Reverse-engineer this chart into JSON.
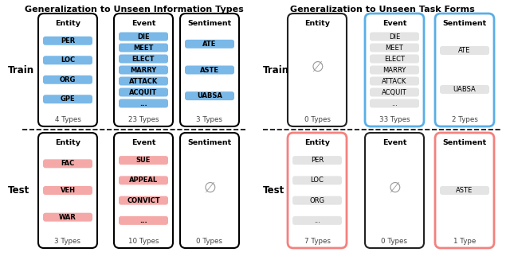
{
  "title_left": "Generalization to Unseen Information Types",
  "title_right": "Generalization to Unseen Task Forms",
  "left": {
    "train": {
      "Entity": {
        "items": [
          "PER",
          "LOC",
          "ORG",
          "GPE"
        ],
        "count": "4 Types",
        "item_color": "#7ab8e8",
        "box_border": "black",
        "empty": false
      },
      "Event": {
        "items": [
          "DIE",
          "MEET",
          "ELECT",
          "MARRY",
          "ATTACK",
          "ACQUIT",
          "..."
        ],
        "count": "23 Types",
        "item_color": "#7ab8e8",
        "box_border": "black",
        "empty": false
      },
      "Sentiment": {
        "items": [
          "ATE",
          "ASTE",
          "UABSA"
        ],
        "count": "3 Types",
        "item_color": "#7ab8e8",
        "box_border": "black",
        "empty": false
      }
    },
    "test": {
      "Entity": {
        "items": [
          "FAC",
          "VEH",
          "WAR"
        ],
        "count": "3 Types",
        "item_color": "#f4a9a8",
        "box_border": "black",
        "empty": false
      },
      "Event": {
        "items": [
          "SUE",
          "APPEAL",
          "CONVICT",
          "..."
        ],
        "count": "10 Types",
        "item_color": "#f4a9a8",
        "box_border": "black",
        "empty": false
      },
      "Sentiment": {
        "items": [],
        "count": "0 Types",
        "item_color": null,
        "box_border": "black",
        "empty": true
      }
    }
  },
  "right": {
    "train": {
      "Entity": {
        "items": [],
        "count": "0 Types",
        "item_color": null,
        "box_border": "#222222",
        "empty": true
      },
      "Event": {
        "items": [
          "DIE",
          "MEET",
          "ELECT",
          "MARRY",
          "ATTACK",
          "ACQUIT",
          "..."
        ],
        "count": "33 Types",
        "item_color": "#e4e4e4",
        "box_border": "#5aaee8",
        "empty": false
      },
      "Sentiment": {
        "items": [
          "ATE",
          "UABSA"
        ],
        "count": "2 Types",
        "item_color": "#e4e4e4",
        "box_border": "#5aaee8",
        "empty": false
      }
    },
    "test": {
      "Entity": {
        "items": [
          "PER",
          "LOC",
          "ORG",
          "..."
        ],
        "count": "7 Types",
        "item_color": "#e4e4e4",
        "box_border": "#f4817e",
        "empty": false
      },
      "Event": {
        "items": [],
        "count": "0 Types",
        "item_color": null,
        "box_border": "#222222",
        "empty": true
      },
      "Sentiment": {
        "items": [
          "ASTE"
        ],
        "count": "1 Type",
        "item_color": "#e4e4e4",
        "box_border": "#f4817e",
        "empty": false
      }
    }
  },
  "background": "#ffffff"
}
